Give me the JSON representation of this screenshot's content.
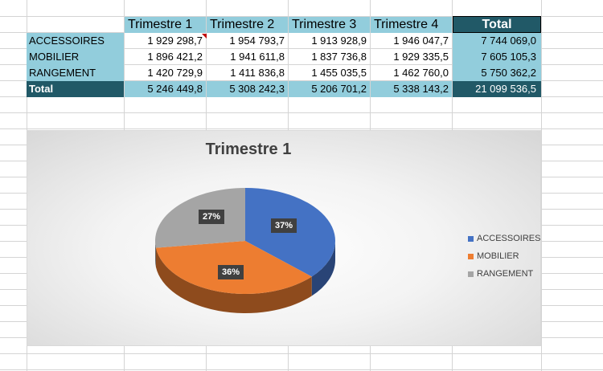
{
  "sheet": {
    "headers": [
      "Trimestre 1",
      "Trimestre 2",
      "Trimestre 3",
      "Trimestre 4",
      "Total"
    ],
    "rows": [
      {
        "label": "ACCESSOIRES",
        "values": [
          "1 929 298,7",
          "1 954 793,7",
          "1 913 928,9",
          "1 946 047,7"
        ],
        "total": "7 744 069,0"
      },
      {
        "label": "MOBILIER",
        "values": [
          "1 896 421,2",
          "1 941 611,8",
          "1 837 736,8",
          "1 929 335,5"
        ],
        "total": "7 605 105,3"
      },
      {
        "label": "RANGEMENT",
        "values": [
          "1 420 729,9",
          "1 411 836,8",
          "1 455 035,5",
          "1 462 760,0"
        ],
        "total": "5 750 362,2"
      }
    ],
    "total_row": {
      "label": "Total",
      "values": [
        "5 246 449,8",
        "5 308 242,3",
        "5 206 701,2",
        "5 338 143,2"
      ],
      "total": "21 099 536,5"
    }
  },
  "chart_data": {
    "type": "pie",
    "title": "Trimestre 1",
    "categories": [
      "ACCESSOIRES",
      "MOBILIER",
      "RANGEMENT"
    ],
    "values": [
      1929298.7,
      1896421.2,
      1420729.9
    ],
    "labels": [
      "37%",
      "36%",
      "27%"
    ],
    "colors": [
      "#4472c4",
      "#ed7d31",
      "#a5a5a5"
    ],
    "legend": "right",
    "style": "3d"
  }
}
